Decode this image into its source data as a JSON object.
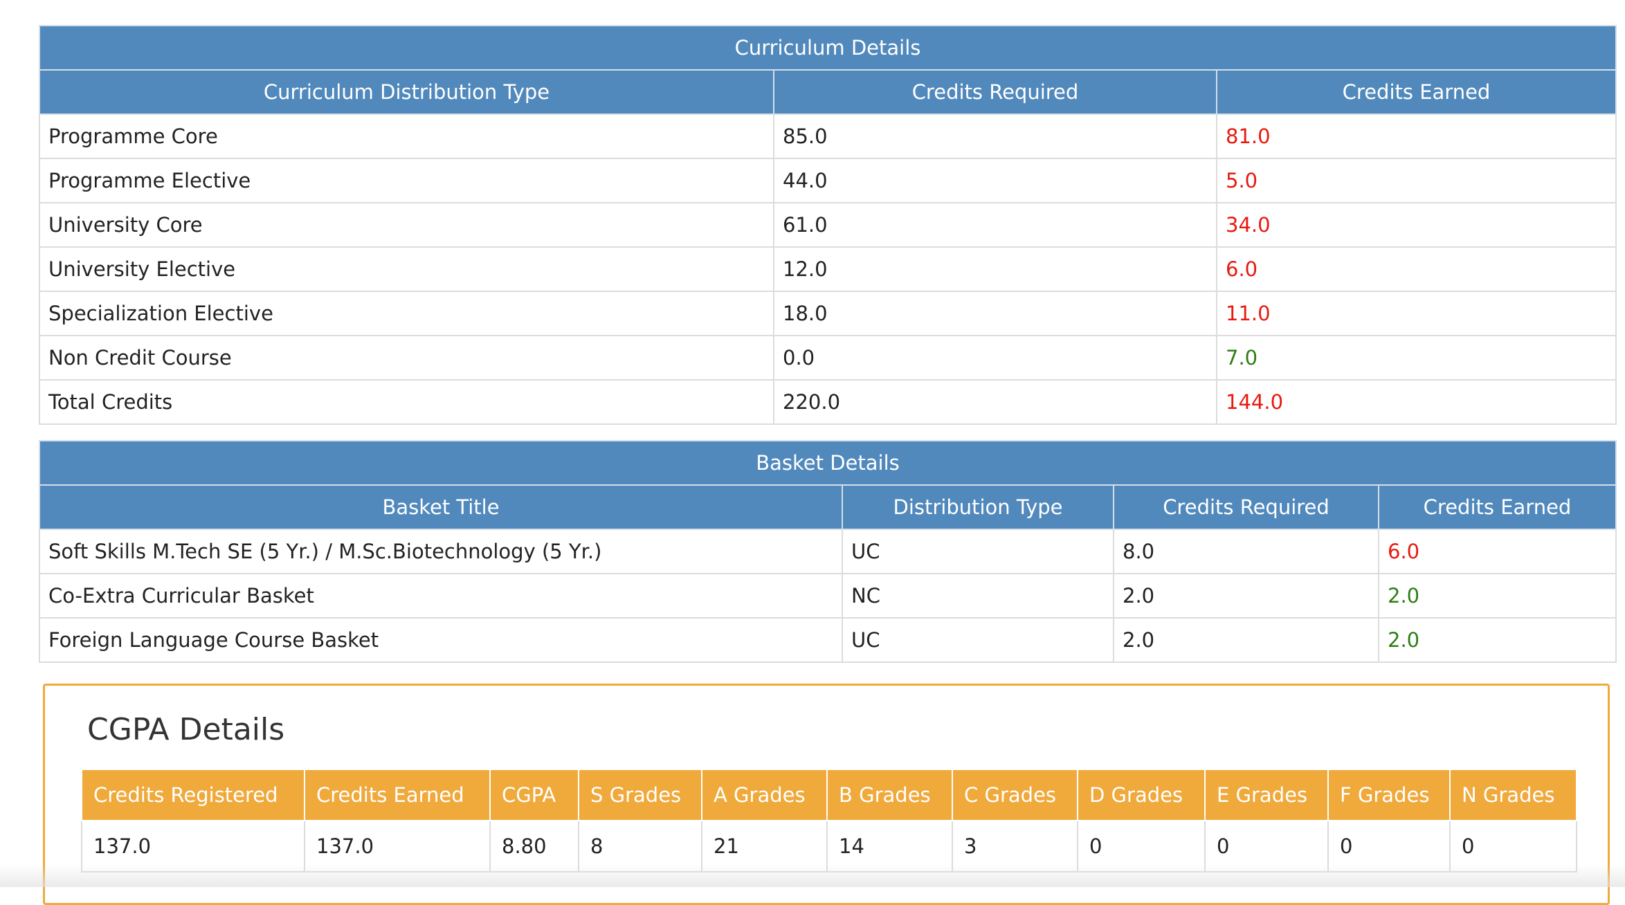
{
  "curriculum": {
    "title": "Curriculum Details",
    "headers": [
      "Curriculum Distribution Type",
      "Credits Required",
      "Credits Earned"
    ],
    "rows": [
      {
        "type": "Programme Core",
        "required": "85.0",
        "earned": "81.0",
        "earned_status": "red"
      },
      {
        "type": "Programme Elective",
        "required": "44.0",
        "earned": "5.0",
        "earned_status": "red"
      },
      {
        "type": "University Core",
        "required": "61.0",
        "earned": "34.0",
        "earned_status": "red"
      },
      {
        "type": "University Elective",
        "required": "12.0",
        "earned": "6.0",
        "earned_status": "red"
      },
      {
        "type": "Specialization Elective",
        "required": "18.0",
        "earned": "11.0",
        "earned_status": "red"
      },
      {
        "type": "Non Credit Course",
        "required": "0.0",
        "earned": "7.0",
        "earned_status": "green"
      },
      {
        "type": "Total Credits",
        "required": "220.0",
        "earned": "144.0",
        "earned_status": "red"
      }
    ]
  },
  "basket": {
    "title": "Basket Details",
    "headers": [
      "Basket Title",
      "Distribution Type",
      "Credits Required",
      "Credits Earned"
    ],
    "rows": [
      {
        "title": "Soft Skills M.Tech SE (5 Yr.) / M.Sc.Biotechnology (5 Yr.)",
        "distribution": "UC",
        "required": "8.0",
        "earned": "6.0",
        "earned_status": "red"
      },
      {
        "title": "Co-Extra Curricular Basket",
        "distribution": "NC",
        "required": "2.0",
        "earned": "2.0",
        "earned_status": "green"
      },
      {
        "title": "Foreign Language Course Basket",
        "distribution": "UC",
        "required": "2.0",
        "earned": "2.0",
        "earned_status": "green"
      }
    ]
  },
  "cgpa": {
    "title": "CGPA Details",
    "headers": [
      "Credits Registered",
      "Credits Earned",
      "CGPA",
      "S Grades",
      "A Grades",
      "B Grades",
      "C Grades",
      "D Grades",
      "E Grades",
      "F Grades",
      "N Grades"
    ],
    "values": [
      "137.0",
      "137.0",
      "8.80",
      "8",
      "21",
      "14",
      "3",
      "0",
      "0",
      "0",
      "0"
    ]
  },
  "colors": {
    "header_blue": "#5189bc",
    "header_orange": "#f0a93b",
    "earned_red": "#e8190f",
    "earned_green": "#2e7d16"
  }
}
